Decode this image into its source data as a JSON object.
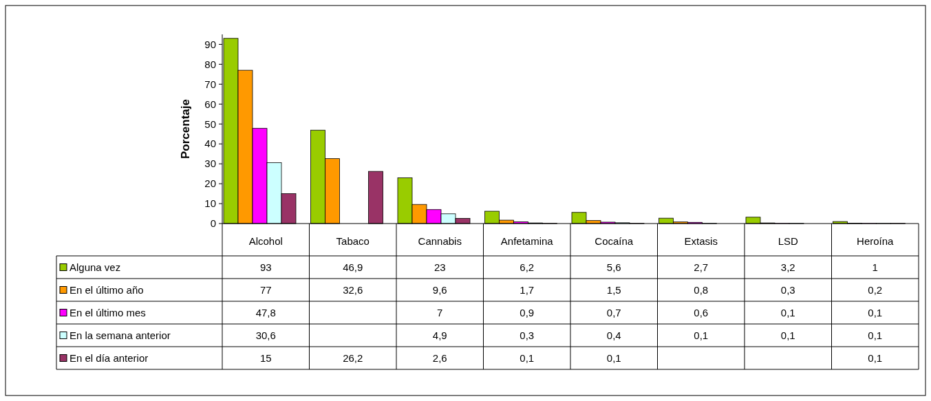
{
  "chart_data": {
    "type": "bar",
    "ylabel": "Porcentaje",
    "categories": [
      "Alcohol",
      "Tabaco",
      "Cannabis",
      "Anfetamina",
      "Cocaína",
      "Extasis",
      "LSD",
      "Heroína"
    ],
    "series": [
      {
        "name": "Alguna vez",
        "color": "#99cc00",
        "values": [
          93,
          46.9,
          23,
          6.2,
          5.6,
          2.7,
          3.2,
          1
        ],
        "value_labels": [
          "93",
          "46,9",
          "23",
          "6,2",
          "5,6",
          "2,7",
          "3,2",
          "1"
        ]
      },
      {
        "name": "En el último año",
        "color": "#ff9900",
        "values": [
          77,
          32.6,
          9.6,
          1.7,
          1.5,
          0.8,
          0.3,
          0.2
        ],
        "value_labels": [
          "77",
          "32,6",
          "9,6",
          "1,7",
          "1,5",
          "0,8",
          "0,3",
          "0,2"
        ]
      },
      {
        "name": "En el último mes",
        "color": "#ff00ff",
        "values": [
          47.8,
          null,
          7,
          0.9,
          0.7,
          0.6,
          0.1,
          0.1
        ],
        "value_labels": [
          "47,8",
          null,
          "7",
          "0,9",
          "0,7",
          "0,6",
          "0,1",
          "0,1"
        ]
      },
      {
        "name": "En la semana anterior",
        "color": "#ccffff",
        "values": [
          30.6,
          null,
          4.9,
          0.3,
          0.4,
          0.1,
          0.1,
          0.1
        ],
        "value_labels": [
          "30,6",
          null,
          "4,9",
          "0,3",
          "0,4",
          "0,1",
          "0,1",
          "0,1"
        ]
      },
      {
        "name": "En el día anterior",
        "color": "#993366",
        "values": [
          15,
          26.2,
          2.6,
          0.1,
          0.1,
          null,
          null,
          0.1
        ],
        "value_labels": [
          "15",
          "26,2",
          "2,6",
          "0,1",
          "0,1",
          null,
          null,
          "0,1"
        ]
      }
    ],
    "ylim": [
      0,
      95
    ],
    "yticks": [
      0,
      10,
      20,
      30,
      40,
      50,
      60,
      70,
      80,
      90
    ],
    "grid": false,
    "legend": "bottom",
    "data_labels": true
  }
}
